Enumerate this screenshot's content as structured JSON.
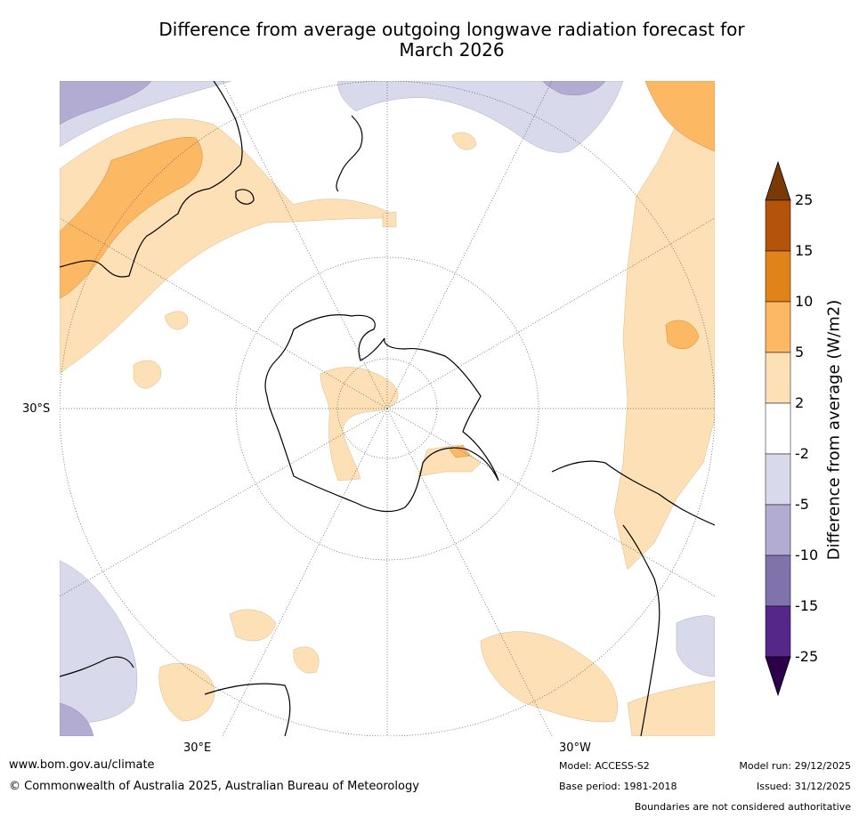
{
  "title_line1": "Difference from average outgoing longwave radiation forecast for",
  "title_line2": "March 2026",
  "map": {
    "lat_label": "30°S",
    "lon_label_east": "30°E",
    "lon_label_west": "30°W"
  },
  "colorbar": {
    "label": "Difference from average (W/m2)",
    "ticks": [
      "25",
      "15",
      "10",
      "5",
      "2",
      "-2",
      "-5",
      "-10",
      "-15",
      "-25"
    ],
    "colors": [
      "#7a3a06",
      "#b3540a",
      "#e0841a",
      "#fdb863",
      "#fde0b5",
      "#ffffff",
      "#d8daeb",
      "#b2abd2",
      "#8073ac",
      "#542788",
      "#2d004b"
    ]
  },
  "footer": {
    "website": "www.bom.gov.au/climate",
    "copyright": "© Commonwealth of Australia 2025, Australian Bureau of Meteorology",
    "model": "Model: ACCESS-S2",
    "base_period": "Base period: 1981-2018",
    "model_run": "Model run: 29/12/2025",
    "issued": "Issued: 31/12/2025",
    "disclaimer": "Boundaries are not considered authoritative"
  }
}
